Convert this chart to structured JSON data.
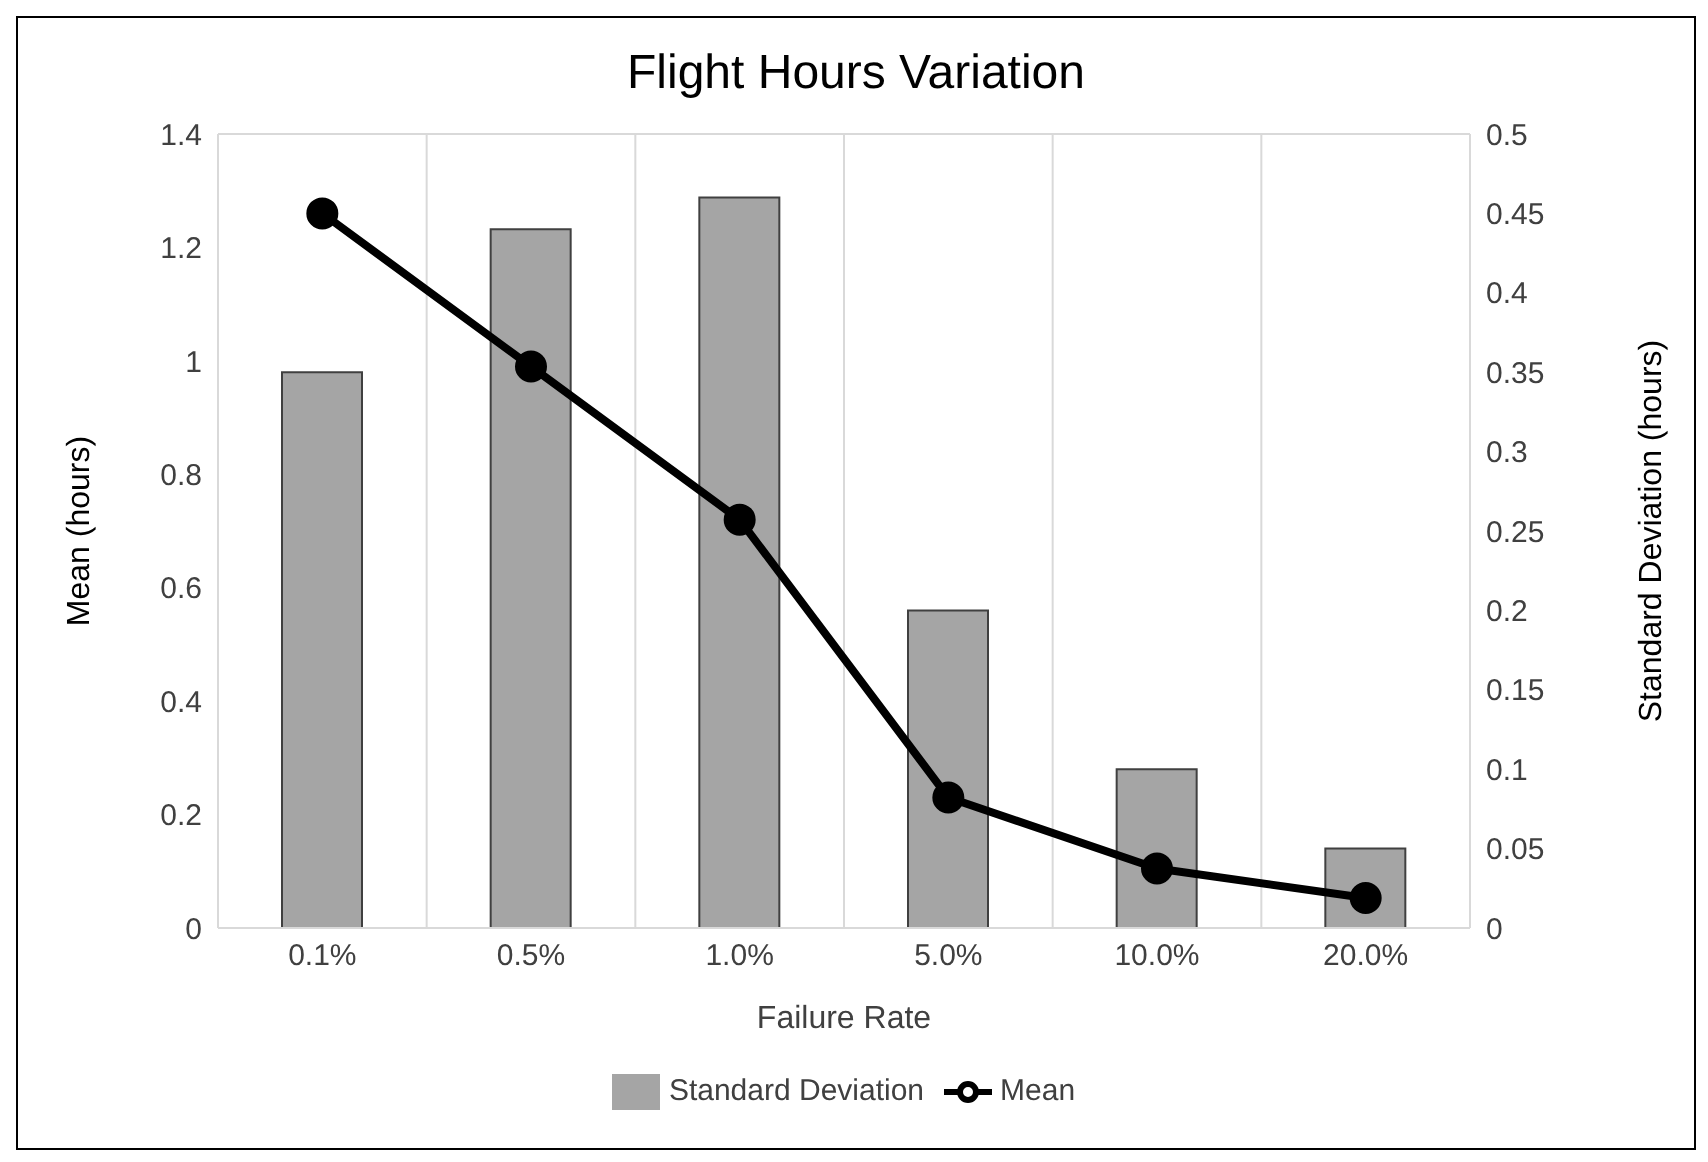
{
  "chart_data": {
    "type": "bar",
    "title": "Flight Hours Variation",
    "xlabel": "Failure Rate",
    "ylabel": "Mean (hours)",
    "y2label": "Standard Deviation (hours)",
    "categories": [
      "0.1%",
      "0.5%",
      "1.0%",
      "5.0%",
      "10.0%",
      "20.0%"
    ],
    "series": [
      {
        "name": "Standard Deviation",
        "axis": "y2",
        "color": "#a5a5a5",
        "values": [
          0.35,
          0.44,
          0.46,
          0.2,
          0.1,
          0.05
        ]
      },
      {
        "name": "Mean",
        "type": "line",
        "color": "#000000",
        "values": [
          1.26,
          0.99,
          0.72,
          0.23,
          0.105,
          0.053
        ]
      }
    ],
    "ylim": [
      0,
      1.4
    ],
    "yticks": [
      0,
      0.2,
      0.4,
      0.6,
      0.8,
      1,
      1.2,
      1.4
    ],
    "y2lim": [
      0,
      0.5
    ],
    "y2ticks": [
      0,
      0.05,
      0.1,
      0.15,
      0.2,
      0.25,
      0.3,
      0.35,
      0.4,
      0.45,
      0.5
    ],
    "grid": true,
    "legend": "bottom",
    "marker": "circle",
    "line_style": "solid"
  }
}
